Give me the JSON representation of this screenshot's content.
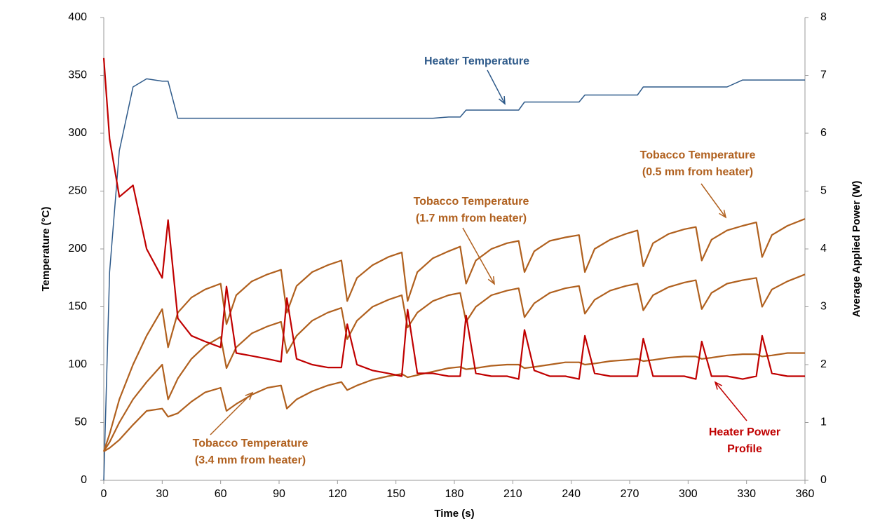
{
  "chart_data": {
    "type": "line",
    "x_label": "Time (s)",
    "y_label": "Temperature (°C)",
    "y2_label": "Average Applied Power (W)",
    "x": [
      0,
      3,
      8,
      15,
      22,
      30,
      33,
      38,
      45,
      52,
      60,
      63,
      68,
      76,
      84,
      91,
      94,
      99,
      107,
      115,
      122,
      125,
      130,
      138,
      146,
      153,
      156,
      161,
      169,
      177,
      183,
      186,
      191,
      199,
      207,
      213,
      216,
      221,
      229,
      237,
      244,
      247,
      252,
      260,
      268,
      274,
      277,
      282,
      290,
      298,
      304,
      307,
      312,
      320,
      328,
      335,
      338,
      343,
      351,
      360
    ],
    "xlim": [
      0,
      360
    ],
    "xticks": [
      0,
      30,
      60,
      90,
      120,
      150,
      180,
      210,
      240,
      270,
      300,
      330,
      360
    ],
    "ylim": [
      0,
      400
    ],
    "yticks": [
      0,
      50,
      100,
      150,
      200,
      250,
      300,
      350,
      400
    ],
    "y2lim": [
      0,
      8
    ],
    "y2ticks": [
      0,
      1,
      2,
      3,
      4,
      5,
      6,
      7,
      8
    ],
    "grid": false,
    "series": [
      {
        "color": "#2e5a8a",
        "width": 1.5,
        "values": [
          0,
          180,
          285,
          340,
          347,
          345,
          345,
          313,
          313,
          313,
          313,
          313,
          313,
          313,
          313,
          313,
          313,
          313,
          313,
          313,
          313,
          313,
          313,
          313,
          313,
          313,
          313,
          313,
          313,
          314,
          314,
          320,
          320,
          320,
          320,
          320,
          327,
          327,
          327,
          327,
          327,
          333,
          333,
          333,
          333,
          333,
          340,
          340,
          340,
          340,
          340,
          340,
          340,
          340,
          346,
          346,
          346,
          346,
          346,
          346
        ]
      },
      {
        "color": "#b0601e",
        "width": 2.2,
        "values": [
          25,
          40,
          70,
          100,
          125,
          148,
          115,
          145,
          158,
          165,
          170,
          135,
          160,
          172,
          178,
          182,
          145,
          168,
          180,
          186,
          190,
          155,
          175,
          186,
          193,
          197,
          155,
          180,
          192,
          198,
          202,
          170,
          190,
          200,
          205,
          207,
          180,
          198,
          207,
          210,
          212,
          180,
          200,
          208,
          213,
          216,
          185,
          205,
          213,
          217,
          219,
          190,
          208,
          216,
          220,
          223,
          193,
          212,
          220,
          226
        ]
      },
      {
        "color": "#b0601e",
        "width": 2.2,
        "values": [
          25,
          33,
          50,
          70,
          85,
          100,
          70,
          88,
          105,
          116,
          124,
          97,
          115,
          127,
          133,
          137,
          110,
          125,
          138,
          145,
          149,
          122,
          138,
          150,
          156,
          160,
          132,
          145,
          155,
          160,
          162,
          137,
          150,
          160,
          164,
          166,
          141,
          153,
          162,
          166,
          168,
          144,
          156,
          164,
          168,
          170,
          147,
          160,
          167,
          171,
          173,
          148,
          162,
          170,
          173,
          175,
          150,
          165,
          172,
          178
        ]
      },
      {
        "color": "#b0601e",
        "width": 2.2,
        "values": [
          25,
          28,
          35,
          48,
          60,
          62,
          55,
          58,
          68,
          76,
          80,
          60,
          66,
          74,
          80,
          82,
          62,
          70,
          77,
          82,
          85,
          78,
          82,
          87,
          90,
          92,
          89,
          91,
          94,
          97,
          98,
          96,
          97,
          99,
          100,
          100,
          97,
          98,
          100,
          102,
          102,
          100,
          101,
          103,
          104,
          105,
          103,
          104,
          106,
          107,
          107,
          105,
          106,
          108,
          109,
          109,
          107,
          108,
          110,
          110
        ]
      },
      {
        "color": "#c00000",
        "width": 2.2,
        "axis": "y2",
        "values": [
          7.3,
          5.9,
          4.9,
          5.1,
          4.0,
          3.5,
          4.5,
          2.8,
          2.5,
          2.4,
          2.3,
          3.35,
          2.2,
          2.15,
          2.1,
          2.05,
          3.15,
          2.1,
          2.0,
          1.95,
          1.95,
          2.7,
          2.0,
          1.9,
          1.85,
          1.8,
          2.95,
          1.85,
          1.85,
          1.8,
          1.8,
          2.85,
          1.85,
          1.8,
          1.8,
          1.75,
          2.6,
          1.9,
          1.8,
          1.8,
          1.75,
          2.5,
          1.85,
          1.8,
          1.8,
          1.8,
          2.45,
          1.8,
          1.8,
          1.8,
          1.75,
          2.4,
          1.8,
          1.8,
          1.75,
          1.8,
          2.5,
          1.85,
          1.8,
          1.8
        ]
      }
    ],
    "annotations": [
      {
        "lines": [
          "Heater Temperature"
        ],
        "color": "#2e5a8a"
      },
      {
        "lines": [
          "Tobacco Temperature",
          "(0.5 mm from heater)"
        ],
        "color": "#b0601e"
      },
      {
        "lines": [
          "Tobacco Temperature",
          "(1.7 mm from heater)"
        ],
        "color": "#b0601e"
      },
      {
        "lines": [
          "Tobacco Temperature",
          "(3.4 mm from heater)"
        ],
        "color": "#b0601e"
      },
      {
        "lines": [
          "Heater Power",
          "Profile"
        ],
        "color": "#c00000"
      }
    ]
  }
}
